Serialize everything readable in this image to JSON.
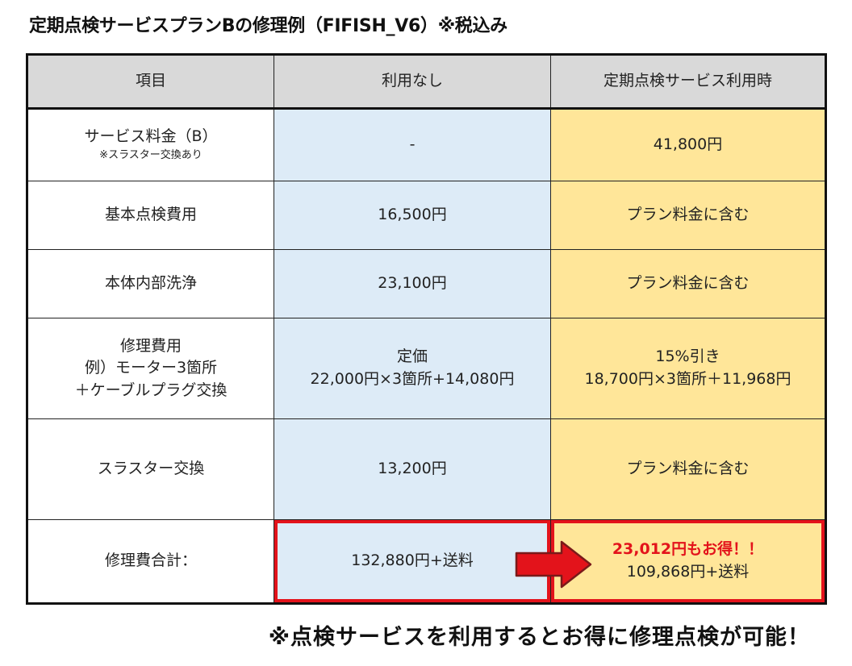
{
  "title": "定期点検サービスプランBの修理例（FIFISH_V6）※税込み",
  "table": {
    "headers": [
      "項目",
      "利用なし",
      "定期点検サービス利用時"
    ],
    "rows": [
      {
        "item": "サービス料金（B）",
        "item_note": "※スラスター交換あり",
        "without": "-",
        "with": "41,800円"
      },
      {
        "item": "基本点検費用",
        "without": "16,500円",
        "with": "プラン料金に含む"
      },
      {
        "item": "本体内部洗浄",
        "without": "23,100円",
        "with": "プラン料金に含む"
      },
      {
        "item_lines": [
          "修理費用",
          "例）モーター3箇所",
          "＋ケーブルプラグ交換"
        ],
        "without_lines": [
          "定価",
          "22,000円×3箇所+14,080円"
        ],
        "with_lines": [
          "15%引き",
          "18,700円×3箇所＋11,968円"
        ]
      },
      {
        "item": "スラスター交換",
        "without": "13,200円",
        "with": "プラン料金に含む"
      },
      {
        "item": "修理費合計：",
        "without": "132,880円+送料",
        "with_savings": "23,012円もお得！！",
        "with": "109,868円+送料"
      }
    ]
  },
  "footer": "※点検サービスを利用するとお得に修理点検が可能！",
  "colors": {
    "header_bg": "#d9d9d9",
    "without_bg": "#ddebf7",
    "with_bg": "#ffe699",
    "accent_red": "#e3131b"
  },
  "icons": {
    "arrow": "right-arrow-icon"
  }
}
